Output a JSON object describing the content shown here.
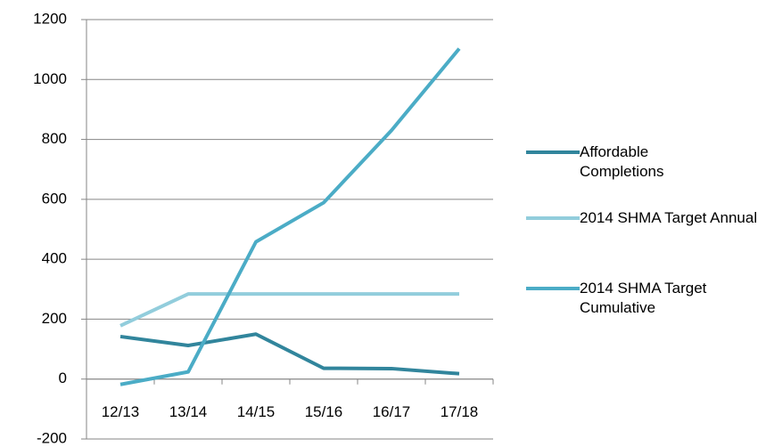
{
  "chart_data": {
    "type": "line",
    "categories": [
      "12/13",
      "13/14",
      "14/15",
      "15/16",
      "16/17",
      "17/18"
    ],
    "series": [
      {
        "name": "Affordable Completions",
        "color": "#31859c",
        "values": [
          142,
          112,
          150,
          36,
          35,
          18
        ]
      },
      {
        "name": "2014 SHMA Target Annual",
        "color": "#92cddc",
        "values": [
          178,
          284,
          284,
          284,
          284,
          284
        ]
      },
      {
        "name": "2014 SHMA Target Cumulative",
        "color": "#4bacc6",
        "values": [
          -18,
          24,
          458,
          589,
          830,
          1103
        ]
      }
    ],
    "ylim": [
      -200,
      1200
    ],
    "yticks": [
      -200,
      0,
      200,
      400,
      600,
      800,
      1000,
      1200
    ],
    "grid": true,
    "legend": "right"
  }
}
